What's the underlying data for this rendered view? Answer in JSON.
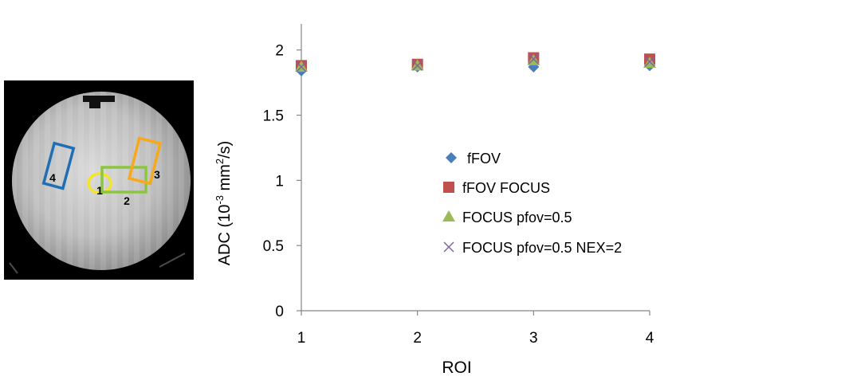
{
  "phantom": {
    "roi_labels": [
      "1",
      "2",
      "3",
      "4"
    ],
    "roi_colors": [
      "#f5e52a",
      "#8cc63f",
      "#f7a81b",
      "#1f6fb5"
    ]
  },
  "chart_data": {
    "type": "scatter",
    "xlabel": "ROI",
    "ylabel_main": "ADC (10",
    "ylabel_exp": "-3",
    "ylabel_unit": " mm",
    "ylabel_sup2": "2",
    "ylabel_tail": "/s)",
    "x_ticks": [
      "1",
      "2",
      "3",
      "4"
    ],
    "y_ticks": [
      "0",
      "0.5",
      "1",
      "1.5",
      "2"
    ],
    "xlim": [
      1,
      4
    ],
    "ylim": [
      0,
      2.2
    ],
    "grid": false,
    "legend_position": "center",
    "x": [
      1,
      2,
      3,
      4
    ],
    "series": [
      {
        "name": "fFOV",
        "marker": "diamond",
        "color": "#4a7ebb",
        "values": [
          1.84,
          1.87,
          1.87,
          1.88
        ]
      },
      {
        "name": "fFOV FOCUS",
        "marker": "square",
        "color": "#c0504d",
        "values": [
          1.88,
          1.89,
          1.94,
          1.93
        ]
      },
      {
        "name": "FOCUS pfov=0.5",
        "marker": "triangle",
        "color": "#9bbb59",
        "values": [
          1.87,
          1.88,
          1.92,
          1.9
        ]
      },
      {
        "name": "FOCUS pfov=0.5 NEX=2",
        "marker": "x",
        "color": "#8064a2",
        "values": [
          1.87,
          1.88,
          1.93,
          1.91
        ]
      }
    ]
  }
}
